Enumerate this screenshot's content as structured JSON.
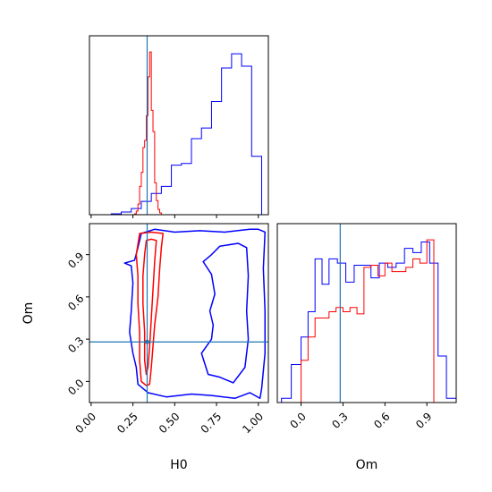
{
  "chart_data": {
    "type": "corner",
    "parameters": [
      "H0",
      "Om"
    ],
    "truths": {
      "H0": 0.335,
      "Om": 0.28
    },
    "colors": {
      "blue": "#0000ff",
      "red": "#ff0000",
      "truth": "#1f77b4"
    },
    "x_labels": [
      "H0",
      "Om"
    ],
    "y_labels": [
      "Om"
    ],
    "panels": [
      {
        "id": "H0-marginal",
        "type": "histogram",
        "xlim": [
          -0.01,
          1.06
        ],
        "ticks": [
          0.0,
          0.25,
          0.5,
          0.75,
          1.0
        ],
        "series": [
          {
            "name": "blue",
            "color": "#0000ff",
            "edges": [
              0.12,
              0.18,
              0.24,
              0.3,
              0.36,
              0.42,
              0.48,
              0.54,
              0.6,
              0.66,
              0.72,
              0.78,
              0.84,
              0.9,
              0.96,
              1.02
            ],
            "values": [
              0.5,
              1.5,
              3.5,
              7.5,
              12.0,
              16.0,
              28.0,
              29.0,
              43.0,
              49.0,
              64.0,
              83.0,
              91.0,
              84.0,
              33.0
            ]
          },
          {
            "name": "red",
            "color": "#ff0000",
            "edges": [
              0.26,
              0.27,
              0.28,
              0.29,
              0.3,
              0.31,
              0.32,
              0.33,
              0.34,
              0.35,
              0.36,
              0.37,
              0.38,
              0.39,
              0.4,
              0.41,
              0.42
            ],
            "values": [
              0.5,
              2.0,
              6.0,
              16.0,
              24.0,
              38.0,
              42.0,
              56.0,
              78.0,
              92.0,
              59.0,
              47.0,
              18.0,
              8.0,
              3.0,
              1.0
            ]
          }
        ]
      },
      {
        "id": "Om-marginal",
        "type": "histogram",
        "xlim": [
          -0.17,
          1.11
        ],
        "ticks": [
          0.0,
          0.3,
          0.6,
          0.9
        ],
        "series": [
          {
            "name": "blue",
            "color": "#0000ff",
            "edges": [
              -0.14,
              -0.07,
              0.0,
              0.05,
              0.1,
              0.15,
              0.2,
              0.26,
              0.32,
              0.38,
              0.44,
              0.5,
              0.56,
              0.62,
              0.68,
              0.74,
              0.8,
              0.86,
              0.92,
              0.98,
              1.04,
              1.11
            ],
            "values": [
              0.2,
              1.8,
              3.1,
              4.3,
              6.8,
              5.6,
              6.8,
              6.6,
              5.7,
              6.5,
              6.5,
              5.9,
              6.6,
              6.4,
              6.6,
              7.3,
              7.1,
              7.6,
              6.6,
              2.2,
              0.2
            ]
          },
          {
            "name": "red",
            "color": "#ff0000",
            "edges": [
              0.0,
              0.05,
              0.1,
              0.15,
              0.2,
              0.25,
              0.3,
              0.35,
              0.4,
              0.45,
              0.5,
              0.55,
              0.6,
              0.65,
              0.7,
              0.75,
              0.8,
              0.85,
              0.9,
              0.95,
              1.0
            ],
            "values": [
              2.0,
              3.1,
              4.0,
              4.0,
              4.3,
              4.5,
              4.3,
              4.5,
              4.2,
              6.4,
              6.5,
              6.0,
              6.6,
              6.2,
              6.2,
              6.4,
              6.8,
              6.6,
              7.7,
              0.0
            ]
          }
        ]
      },
      {
        "id": "H0-Om-2d",
        "type": "contour",
        "xlim": [
          -0.01,
          1.06
        ],
        "ylim": [
          -0.15,
          1.12
        ],
        "xticks": [
          0.0,
          0.25,
          0.5,
          0.75,
          1.0
        ],
        "yticks": [
          0.0,
          0.3,
          0.6,
          0.9
        ],
        "contours": [
          {
            "name": "blue-outer",
            "color": "#0000ff",
            "points": [
              [
                0.3,
                1.05
              ],
              [
                0.38,
                1.08
              ],
              [
                0.5,
                1.06
              ],
              [
                0.65,
                1.07
              ],
              [
                0.8,
                1.06
              ],
              [
                0.95,
                1.08
              ],
              [
                1.0,
                1.08
              ],
              [
                1.04,
                1.06
              ],
              [
                1.03,
                0.8
              ],
              [
                1.04,
                0.5
              ],
              [
                1.04,
                0.2
              ],
              [
                1.02,
                -0.05
              ],
              [
                1.01,
                -0.12
              ],
              [
                0.95,
                -0.08
              ],
              [
                0.86,
                -0.12
              ],
              [
                0.72,
                -0.1
              ],
              [
                0.6,
                -0.09
              ],
              [
                0.45,
                -0.11
              ],
              [
                0.34,
                -0.08
              ],
              [
                0.28,
                -0.02
              ],
              [
                0.27,
                0.1
              ],
              [
                0.25,
                0.2
              ],
              [
                0.23,
                0.35
              ],
              [
                0.24,
                0.5
              ],
              [
                0.25,
                0.7
              ],
              [
                0.24,
                0.82
              ],
              [
                0.2,
                0.84
              ],
              [
                0.26,
                0.86
              ],
              [
                0.28,
                0.95
              ],
              [
                0.3,
                1.05
              ]
            ]
          },
          {
            "name": "blue-inner",
            "color": "#0000ff",
            "points": [
              [
                0.77,
                0.96
              ],
              [
                0.88,
                0.98
              ],
              [
                0.93,
                0.95
              ],
              [
                0.94,
                0.75
              ],
              [
                0.93,
                0.5
              ],
              [
                0.94,
                0.3
              ],
              [
                0.92,
                0.1
              ],
              [
                0.85,
                -0.01
              ],
              [
                0.77,
                0.03
              ],
              [
                0.7,
                0.05
              ],
              [
                0.66,
                0.2
              ],
              [
                0.72,
                0.3
              ],
              [
                0.73,
                0.4
              ],
              [
                0.71,
                0.5
              ],
              [
                0.74,
                0.62
              ],
              [
                0.72,
                0.76
              ],
              [
                0.67,
                0.85
              ],
              [
                0.72,
                0.9
              ],
              [
                0.77,
                0.96
              ]
            ]
          },
          {
            "name": "red-outer",
            "color": "#ff0000",
            "points": [
              [
                0.29,
                1.05
              ],
              [
                0.36,
                1.06
              ],
              [
                0.43,
                1.05
              ],
              [
                0.42,
                0.95
              ],
              [
                0.41,
                0.8
              ],
              [
                0.4,
                0.6
              ],
              [
                0.38,
                0.4
              ],
              [
                0.37,
                0.25
              ],
              [
                0.36,
                0.1
              ],
              [
                0.35,
                -0.02
              ],
              [
                0.33,
                -0.03
              ],
              [
                0.3,
                0.0
              ],
              [
                0.29,
                0.15
              ],
              [
                0.29,
                0.35
              ],
              [
                0.28,
                0.55
              ],
              [
                0.28,
                0.75
              ],
              [
                0.27,
                0.9
              ],
              [
                0.29,
                1.05
              ]
            ]
          },
          {
            "name": "red-inner",
            "color": "#ff0000",
            "points": [
              [
                0.33,
                1.0
              ],
              [
                0.36,
                1.01
              ],
              [
                0.39,
                1.0
              ],
              [
                0.38,
                0.85
              ],
              [
                0.37,
                0.65
              ],
              [
                0.36,
                0.45
              ],
              [
                0.35,
                0.25
              ],
              [
                0.34,
                0.1
              ],
              [
                0.33,
                0.05
              ],
              [
                0.32,
                0.15
              ],
              [
                0.32,
                0.35
              ],
              [
                0.31,
                0.55
              ],
              [
                0.31,
                0.75
              ],
              [
                0.32,
                0.9
              ],
              [
                0.33,
                1.0
              ]
            ]
          }
        ]
      }
    ]
  }
}
